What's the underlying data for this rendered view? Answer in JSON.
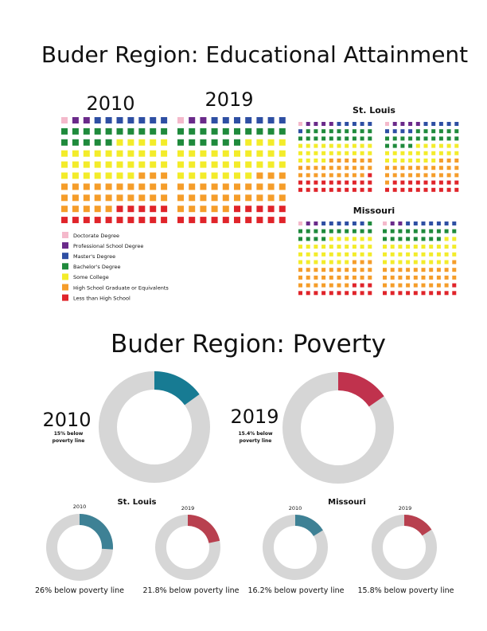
{
  "education": {
    "title": "Buder Region: Educational Attainment",
    "grid_units": 100,
    "chart_data": [
      {
        "type": "waffle",
        "name": "Buder Region 2010",
        "title": "2010",
        "categories": [
          "Doctorate Degree",
          "Professional School Degree",
          "Master's Degree",
          "Bachelor's Degree",
          "Some College",
          "High School Graduate or Equivalents",
          "Less than High School"
        ],
        "values": [
          1,
          2,
          7,
          15,
          32,
          28,
          15
        ]
      },
      {
        "type": "waffle",
        "name": "Buder Region 2019",
        "title": "2019",
        "categories": [
          "Doctorate Degree",
          "Professional School Degree",
          "Master's Degree",
          "Bachelor's Degree",
          "Some College",
          "High School Graduate or Equivalents",
          "Less than High School"
        ],
        "values": [
          1,
          2,
          7,
          16,
          31,
          28,
          15
        ]
      },
      {
        "type": "waffle",
        "name": "St. Louis 2010",
        "title": "St. Louis",
        "categories": [
          "Doctorate Degree",
          "Professional School Degree",
          "Master's Degree",
          "Bachelor's Degree",
          "Some College",
          "High School Graduate or Equivalents",
          "Less than High School"
        ],
        "values": [
          1,
          4,
          6,
          19,
          24,
          25,
          21
        ]
      },
      {
        "type": "waffle",
        "name": "St. Louis 2019",
        "title": "",
        "categories": [
          "Doctorate Degree",
          "Professional School Degree",
          "Master's Degree",
          "Bachelor's Degree",
          "Some College",
          "High School Graduate or Equivalents",
          "Less than High School"
        ],
        "values": [
          1,
          4,
          9,
          20,
          23,
          24,
          19
        ]
      },
      {
        "type": "waffle",
        "name": "Missouri 2010",
        "title": "Missouri",
        "categories": [
          "Doctorate Degree",
          "Professional School Degree",
          "Master's Degree",
          "Bachelor's Degree",
          "Some College",
          "High School Graduate or Equivalents",
          "Less than High School"
        ],
        "values": [
          1,
          2,
          6,
          15,
          33,
          30,
          13
        ]
      },
      {
        "type": "waffle",
        "name": "Missouri 2019",
        "title": "",
        "categories": [
          "Doctorate Degree",
          "Professional School Degree",
          "Master's Degree",
          "Bachelor's Degree",
          "Some College",
          "High School Graduate or Equivalents",
          "Less than High School"
        ],
        "values": [
          1,
          2,
          7,
          18,
          31,
          30,
          11
        ]
      }
    ],
    "legend": [
      {
        "label": "Doctorate Degree",
        "color": "#f4b9cb"
      },
      {
        "label": "Professional School Degree",
        "color": "#6a2a8a"
      },
      {
        "label": "Master's Degree",
        "color": "#2e4fa3"
      },
      {
        "label": "Bachelor's Degree",
        "color": "#1f8a3c"
      },
      {
        "label": "Some College",
        "color": "#f3ec2a"
      },
      {
        "label": "High School Graduate or Equivalents",
        "color": "#f59d2a"
      },
      {
        "label": "Less than High School",
        "color": "#e0242a"
      }
    ]
  },
  "poverty": {
    "title": "Buder Region: Poverty",
    "colors": {
      "ring": "#d6d6d6",
      "teal": "#177b93",
      "teal_light": "#3e8195",
      "crimson": "#c0324d",
      "crimson_light": "#b8404f"
    },
    "chart_data": [
      {
        "type": "pie",
        "name": "Buder Region 2010",
        "year": "2010",
        "value": 15,
        "label": "15% below poverty line",
        "color": "#177b93"
      },
      {
        "type": "pie",
        "name": "Buder Region 2019",
        "year": "2019",
        "value": 15.4,
        "label": "15.4% below poverty line",
        "color": "#c0324d"
      },
      {
        "type": "pie",
        "name": "St. Louis 2010",
        "year": "2010",
        "value": 26,
        "label": "26% below poverty line",
        "color": "#3e8195"
      },
      {
        "type": "pie",
        "name": "St. Louis 2019",
        "year": "2019",
        "value": 21.8,
        "label": "21.8% below poverty line",
        "color": "#b8404f"
      },
      {
        "type": "pie",
        "name": "Missouri 2010",
        "year": "2010",
        "value": 16.2,
        "label": "16.2% below poverty line",
        "color": "#3e8195"
      },
      {
        "type": "pie",
        "name": "Missouri 2019",
        "year": "2019",
        "value": 15.8,
        "label": "15.8% below poverty line",
        "color": "#b8404f"
      }
    ],
    "group_titles": {
      "stlouis": "St. Louis",
      "missouri": "Missouri"
    }
  }
}
